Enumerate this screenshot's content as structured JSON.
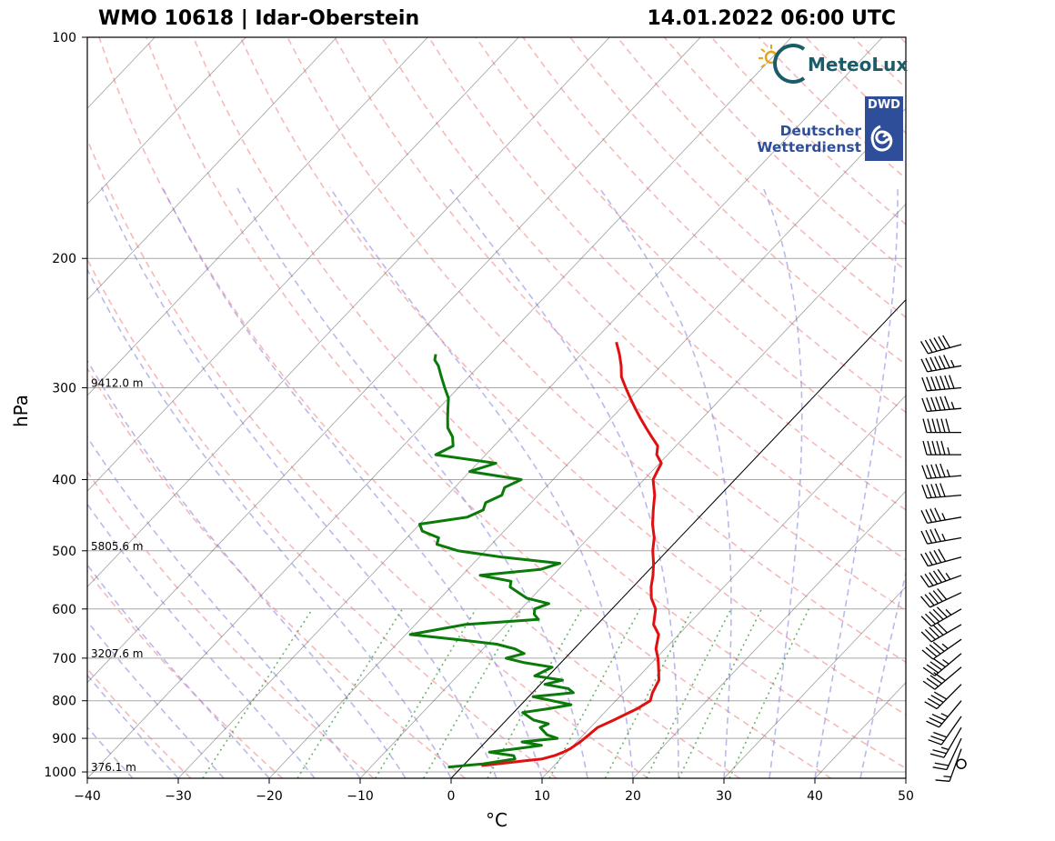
{
  "header": {
    "title_left": "WMO 10618 | Idar-Oberstein",
    "title_right": "14.01.2022 06:00 UTC"
  },
  "logos": {
    "meteolux": "MeteoLux",
    "dwd_box": "DWD",
    "dwd_line1": "Deutscher",
    "dwd_line2": "Wetterdienst"
  },
  "chart_data": {
    "type": "skew-t",
    "xlabel": "°C",
    "ylabel": "hPa",
    "xlim": [
      -40,
      50
    ],
    "ylim": [
      1020,
      100
    ],
    "x_ticks": [
      -40,
      -30,
      -20,
      -10,
      0,
      10,
      20,
      30,
      40,
      50
    ],
    "y_ticks": [
      100,
      200,
      300,
      400,
      500,
      600,
      700,
      800,
      900,
      1000
    ],
    "grid": true,
    "height_labels": [
      {
        "p": 300,
        "text": "9412.0 m"
      },
      {
        "p": 500,
        "text": "5805.6 m"
      },
      {
        "p": 700,
        "text": "3207.6 m"
      },
      {
        "p": 1000,
        "text": "376.1 m"
      }
    ],
    "series": [
      {
        "variable": "temperature",
        "color": "#e01010",
        "p": [
          980,
          975,
          965,
          960,
          950,
          940,
          930,
          910,
          890,
          870,
          850,
          820,
          800,
          780,
          750,
          720,
          700,
          680,
          650,
          630,
          600,
          580,
          560,
          540,
          520,
          500,
          480,
          460,
          440,
          420,
          400,
          390,
          380,
          370,
          360,
          350,
          340,
          330,
          320,
          310,
          300,
          290,
          280,
          270,
          260
        ],
        "t": [
          2.0,
          3.5,
          6.5,
          8.0,
          9.0,
          9.6,
          10.0,
          10.4,
          10.6,
          10.8,
          11.8,
          13.2,
          13.8,
          13.2,
          12.6,
          11.2,
          10.2,
          9.0,
          7.8,
          6.2,
          4.8,
          3.2,
          2.0,
          1.0,
          -0.2,
          -1.6,
          -2.8,
          -4.4,
          -5.8,
          -7.2,
          -9.0,
          -9.4,
          -9.8,
          -11.2,
          -12.0,
          -13.6,
          -15.2,
          -16.8,
          -18.4,
          -20.0,
          -21.6,
          -23.2,
          -24.4,
          -25.8,
          -27.4
        ]
      },
      {
        "variable": "dewpoint",
        "color": "#0a7a0a",
        "p": [
          985,
          975,
          960,
          950,
          940,
          930,
          920,
          910,
          900,
          890,
          870,
          860,
          850,
          830,
          820,
          810,
          800,
          790,
          780,
          770,
          760,
          750,
          740,
          730,
          720,
          710,
          700,
          690,
          680,
          670,
          660,
          650,
          640,
          630,
          620,
          610,
          600,
          590,
          580,
          570,
          560,
          550,
          540,
          530,
          520,
          510,
          500,
          490,
          480,
          470,
          460,
          450,
          440,
          430,
          420,
          410,
          400,
          390,
          380,
          370,
          360,
          350,
          340,
          330,
          320,
          310,
          300,
          290,
          280,
          275,
          270
        ],
        "t": [
          -1.5,
          2.0,
          5.0,
          4.5,
          1.5,
          4.0,
          6.5,
          4.0,
          7.5,
          6.0,
          4.5,
          5.0,
          3.0,
          1.0,
          3.5,
          5.5,
          3.0,
          0.5,
          4.5,
          3.5,
          0.5,
          2.0,
          -1.5,
          -1.0,
          -0.5,
          -4.0,
          -6.5,
          -5.0,
          -6.5,
          -9.0,
          -14.0,
          -19.5,
          -17.0,
          -14.5,
          -7.0,
          -8.0,
          -8.5,
          -7.5,
          -10.5,
          -12.0,
          -13.5,
          -14.0,
          -18.0,
          -12.0,
          -10.5,
          -17.5,
          -23.0,
          -26.0,
          -26.5,
          -29.0,
          -30.0,
          -25.5,
          -24.5,
          -25.0,
          -24.0,
          -24.5,
          -23.5,
          -30.0,
          -28.0,
          -35.5,
          -34.5,
          -35.5,
          -37.0,
          -38.0,
          -39.0,
          -40.0,
          -41.5,
          -43.0,
          -44.5,
          -45.5,
          -46.0
        ]
      }
    ],
    "wind_barbs": [
      {
        "p": 975,
        "dir": 0,
        "spd": 0
      },
      {
        "p": 930,
        "dir": 200,
        "spd": 15
      },
      {
        "p": 900,
        "dir": 205,
        "spd": 20
      },
      {
        "p": 870,
        "dir": 210,
        "spd": 25
      },
      {
        "p": 840,
        "dir": 215,
        "spd": 30
      },
      {
        "p": 800,
        "dir": 220,
        "spd": 35
      },
      {
        "p": 760,
        "dir": 225,
        "spd": 40
      },
      {
        "p": 720,
        "dir": 230,
        "spd": 40
      },
      {
        "p": 690,
        "dir": 230,
        "spd": 45
      },
      {
        "p": 660,
        "dir": 235,
        "spd": 45
      },
      {
        "p": 630,
        "dir": 240,
        "spd": 50
      },
      {
        "p": 600,
        "dir": 240,
        "spd": 55
      },
      {
        "p": 570,
        "dir": 245,
        "spd": 50
      },
      {
        "p": 540,
        "dir": 250,
        "spd": 55
      },
      {
        "p": 510,
        "dir": 255,
        "spd": 50
      },
      {
        "p": 480,
        "dir": 260,
        "spd": 45
      },
      {
        "p": 450,
        "dir": 260,
        "spd": 45
      },
      {
        "p": 420,
        "dir": 265,
        "spd": 50
      },
      {
        "p": 395,
        "dir": 265,
        "spd": 55
      },
      {
        "p": 370,
        "dir": 270,
        "spd": 55
      },
      {
        "p": 345,
        "dir": 270,
        "spd": 60
      },
      {
        "p": 320,
        "dir": 265,
        "spd": 65
      },
      {
        "p": 300,
        "dir": 265,
        "spd": 70
      },
      {
        "p": 280,
        "dir": 260,
        "spd": 65
      },
      {
        "p": 262,
        "dir": 255,
        "spd": 60
      }
    ]
  }
}
